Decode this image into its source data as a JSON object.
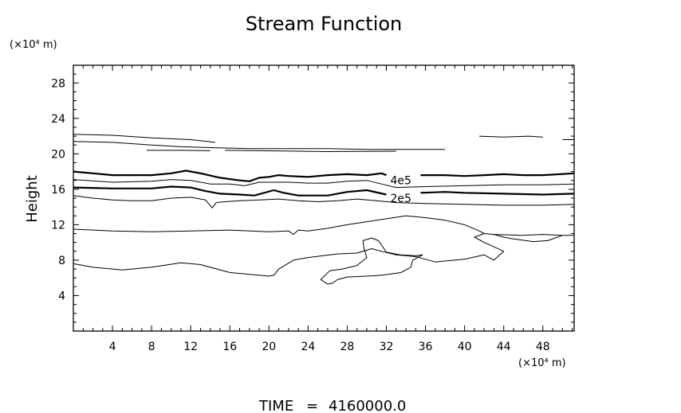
{
  "chart_data": {
    "type": "contour",
    "title": "Stream Function",
    "ylabel": "Height",
    "y_unit": "(×10⁴ m)",
    "x_unit": "(×10⁴ m)",
    "xlim": [
      0,
      51.2
    ],
    "ylim": [
      0,
      30
    ],
    "xticks": [
      "4",
      "8",
      "12",
      "16",
      "20",
      "24",
      "28",
      "32",
      "36",
      "40",
      "44",
      "48"
    ],
    "yticks": [
      "4",
      "8",
      "12",
      "16",
      "20",
      "24",
      "28"
    ],
    "contour_labels": [
      {
        "text": "4e5",
        "x": 32.0,
        "y": 17.0
      },
      {
        "text": "2e5",
        "x": 32.0,
        "y": 15.0
      }
    ],
    "contours": [
      {
        "name": "upper-top",
        "bold": false,
        "points": [
          [
            0,
            22.2
          ],
          [
            4,
            22.1
          ],
          [
            8,
            21.8
          ],
          [
            12,
            21.6
          ],
          [
            14.5,
            21.3
          ]
        ]
      },
      {
        "name": "upper-mid-left",
        "bold": false,
        "points": [
          [
            0,
            21.4
          ],
          [
            4,
            21.3
          ],
          [
            8,
            21.0
          ],
          [
            11,
            20.8
          ],
          [
            14,
            20.7
          ],
          [
            18,
            20.6
          ],
          [
            22,
            20.6
          ],
          [
            26,
            20.6
          ],
          [
            30,
            20.5
          ],
          [
            34,
            20.5
          ],
          [
            38,
            20.5
          ]
        ]
      },
      {
        "name": "upper-low-segment",
        "bold": false,
        "points": [
          [
            7.5,
            20.4
          ],
          [
            11,
            20.4
          ],
          [
            14,
            20.35
          ]
        ]
      },
      {
        "name": "upper-low-segment-2",
        "bold": false,
        "points": [
          [
            15.5,
            20.4
          ],
          [
            19,
            20.35
          ],
          [
            23,
            20.3
          ],
          [
            26,
            20.25
          ],
          [
            33,
            20.3
          ]
        ]
      },
      {
        "name": "upper-right-segment",
        "bold": false,
        "points": [
          [
            41.5,
            22.0
          ],
          [
            44,
            21.9
          ],
          [
            46.5,
            22.0
          ],
          [
            48,
            21.9
          ]
        ]
      },
      {
        "name": "upper-right-dash",
        "bold": false,
        "points": [
          [
            50,
            21.6
          ],
          [
            51.2,
            21.6
          ]
        ]
      },
      {
        "name": "4e5",
        "bold": true,
        "points": [
          [
            0,
            18.0
          ],
          [
            2,
            17.8
          ],
          [
            4,
            17.6
          ],
          [
            8,
            17.6
          ],
          [
            10,
            17.8
          ],
          [
            11.5,
            18.1
          ],
          [
            13,
            17.8
          ],
          [
            15,
            17.3
          ],
          [
            17,
            17.0
          ],
          [
            18,
            16.9
          ],
          [
            19,
            17.3
          ],
          [
            20,
            17.4
          ],
          [
            21,
            17.6
          ],
          [
            22,
            17.5
          ],
          [
            24,
            17.4
          ],
          [
            26,
            17.6
          ],
          [
            28,
            17.7
          ],
          [
            30,
            17.6
          ],
          [
            31.5,
            17.8
          ],
          [
            32,
            17.6
          ]
        ]
      },
      {
        "name": "4e5-right",
        "bold": true,
        "points": [
          [
            35.5,
            17.6
          ],
          [
            38,
            17.6
          ],
          [
            40,
            17.5
          ],
          [
            42,
            17.6
          ],
          [
            44,
            17.7
          ],
          [
            46,
            17.6
          ],
          [
            48,
            17.6
          ],
          [
            51.2,
            17.8
          ]
        ]
      },
      {
        "name": "mid",
        "bold": false,
        "points": [
          [
            0,
            17.1
          ],
          [
            4,
            16.8
          ],
          [
            8,
            16.9
          ],
          [
            10,
            17.1
          ],
          [
            12,
            17.0
          ],
          [
            14,
            16.6
          ],
          [
            16,
            16.6
          ],
          [
            17.5,
            16.4
          ],
          [
            19,
            16.8
          ],
          [
            21,
            16.8
          ],
          [
            22,
            16.8
          ],
          [
            24,
            16.7
          ],
          [
            26,
            16.7
          ],
          [
            28,
            16.9
          ],
          [
            30,
            17.0
          ],
          [
            31.5,
            16.6
          ],
          [
            33,
            16.2
          ],
          [
            36,
            16.3
          ],
          [
            40,
            16.4
          ],
          [
            44,
            16.5
          ],
          [
            48,
            16.5
          ],
          [
            51.2,
            16.6
          ]
        ]
      },
      {
        "name": "2e5",
        "bold": true,
        "points": [
          [
            0,
            16.2
          ],
          [
            4,
            16.1
          ],
          [
            8,
            16.1
          ],
          [
            10,
            16.3
          ],
          [
            12,
            16.2
          ],
          [
            13.5,
            15.8
          ],
          [
            15,
            15.5
          ],
          [
            17,
            15.4
          ],
          [
            18.5,
            15.3
          ],
          [
            20.5,
            15.9
          ],
          [
            21.5,
            15.6
          ],
          [
            23,
            15.3
          ],
          [
            26,
            15.3
          ],
          [
            28,
            15.7
          ],
          [
            30,
            15.9
          ],
          [
            32,
            15.4
          ]
        ]
      },
      {
        "name": "2e5-right",
        "bold": true,
        "points": [
          [
            35.5,
            15.6
          ],
          [
            38,
            15.7
          ],
          [
            40,
            15.6
          ],
          [
            44,
            15.5
          ],
          [
            48,
            15.4
          ],
          [
            51.2,
            15.5
          ]
        ]
      },
      {
        "name": "lower-wave",
        "bold": false,
        "points": [
          [
            0,
            15.3
          ],
          [
            2,
            15.0
          ],
          [
            4,
            14.8
          ],
          [
            6,
            14.7
          ],
          [
            8,
            14.7
          ],
          [
            10,
            15.0
          ],
          [
            12,
            15.1
          ],
          [
            13.5,
            14.8
          ],
          [
            14.2,
            13.9
          ],
          [
            14.6,
            14.5
          ],
          [
            15.5,
            14.6
          ],
          [
            17,
            14.7
          ],
          [
            19,
            14.8
          ],
          [
            21,
            14.9
          ],
          [
            23,
            14.7
          ],
          [
            25,
            14.6
          ],
          [
            27,
            14.7
          ],
          [
            29,
            14.9
          ],
          [
            31,
            14.7
          ],
          [
            33,
            14.5
          ],
          [
            36,
            14.4
          ],
          [
            40,
            14.3
          ],
          [
            44,
            14.2
          ],
          [
            48,
            14.2
          ],
          [
            51.2,
            14.3
          ]
        ]
      },
      {
        "name": "ridge-12",
        "bold": false,
        "points": [
          [
            0,
            11.5
          ],
          [
            4,
            11.3
          ],
          [
            8,
            11.2
          ],
          [
            12,
            11.3
          ],
          [
            16,
            11.4
          ],
          [
            20,
            11.2
          ],
          [
            22,
            11.3
          ],
          [
            22.5,
            10.9
          ],
          [
            23,
            11.4
          ],
          [
            24,
            11.3
          ],
          [
            26,
            11.6
          ],
          [
            28,
            12.0
          ],
          [
            31,
            12.5
          ],
          [
            34,
            13.0
          ],
          [
            36,
            12.8
          ],
          [
            38,
            12.5
          ],
          [
            40,
            12.0
          ],
          [
            41.5,
            11.3
          ],
          [
            42,
            11.0
          ],
          [
            43,
            10.9
          ],
          [
            46,
            10.8
          ],
          [
            48,
            10.9
          ],
          [
            50,
            10.8
          ],
          [
            51.2,
            10.8
          ]
        ]
      },
      {
        "name": "ridge-12-spur",
        "bold": false,
        "points": [
          [
            43,
            10.9
          ],
          [
            44,
            10.6
          ],
          [
            45,
            10.4
          ],
          [
            47,
            10.1
          ],
          [
            48.5,
            10.2
          ],
          [
            50,
            10.8
          ]
        ]
      },
      {
        "name": "bump-8",
        "bold": false,
        "points": [
          [
            0,
            7.6
          ],
          [
            2,
            7.2
          ],
          [
            5,
            6.9
          ],
          [
            8,
            7.2
          ],
          [
            11,
            7.7
          ],
          [
            13,
            7.5
          ],
          [
            16,
            6.6
          ],
          [
            18,
            6.4
          ],
          [
            20,
            6.2
          ],
          [
            20.5,
            6.3
          ],
          [
            21,
            7.0
          ],
          [
            22.5,
            8.0
          ],
          [
            24,
            8.3
          ],
          [
            27,
            8.7
          ],
          [
            29,
            8.8
          ],
          [
            30.5,
            9.3
          ],
          [
            31.5,
            9.0
          ],
          [
            33,
            8.6
          ],
          [
            35,
            8.4
          ],
          [
            36,
            8.1
          ],
          [
            37,
            7.8
          ],
          [
            38,
            7.9
          ],
          [
            40,
            8.1
          ],
          [
            42,
            8.6
          ],
          [
            43,
            8.0
          ],
          [
            44,
            9.0
          ],
          [
            43,
            9.5
          ],
          [
            42,
            10.0
          ],
          [
            41,
            10.6
          ],
          [
            42,
            11.0
          ]
        ]
      },
      {
        "name": "closed-loop",
        "bold": false,
        "points": [
          [
            29.6,
            10.2
          ],
          [
            30.5,
            10.5
          ],
          [
            31.2,
            10.2
          ],
          [
            32,
            8.9
          ],
          [
            33.4,
            8.6
          ],
          [
            35,
            8.5
          ],
          [
            35.7,
            8.6
          ],
          [
            34.7,
            8.0
          ],
          [
            34.5,
            7.2
          ],
          [
            33.5,
            6.6
          ],
          [
            31.5,
            6.3
          ],
          [
            30,
            6.2
          ],
          [
            28,
            6.1
          ],
          [
            27,
            5.8
          ],
          [
            26.5,
            5.4
          ],
          [
            26,
            5.3
          ],
          [
            25.3,
            5.8
          ],
          [
            26.2,
            6.8
          ],
          [
            27.5,
            7.0
          ],
          [
            29,
            7.4
          ],
          [
            30,
            8.3
          ],
          [
            29.7,
            9.4
          ],
          [
            29.6,
            10.2
          ]
        ]
      }
    ]
  },
  "footer": {
    "time_label": "TIME",
    "time_equals": "=",
    "time_value": "4160000.0"
  }
}
